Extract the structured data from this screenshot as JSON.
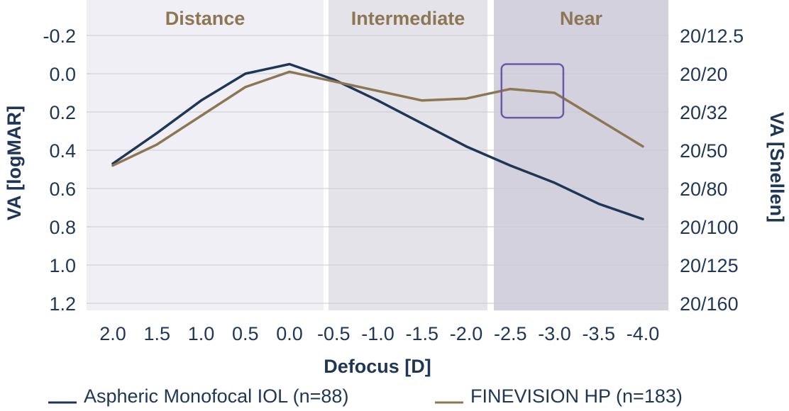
{
  "chart_data": {
    "type": "line",
    "title": "",
    "xlabel": "Defocus [D]",
    "ylabel": "VA [logMAR]",
    "y2label": "VA [Snellen]",
    "x": [
      2.0,
      1.5,
      1.0,
      0.5,
      0.0,
      -0.5,
      -1.0,
      -1.5,
      -2.0,
      -2.5,
      -3.0,
      -3.5,
      -4.0
    ],
    "x_tick_labels": [
      "2.0",
      "1.5",
      "1.0",
      "0.5",
      "0.0",
      "-0.5",
      "-1.0",
      "-1.5",
      "-2.0",
      "-2.5",
      "-3.0",
      "-3.5",
      "-4.0"
    ],
    "ylim": [
      1.2,
      -0.2
    ],
    "y_inverted": true,
    "y_ticks": [
      -0.2,
      0.0,
      0.2,
      0.4,
      0.6,
      0.8,
      1.0,
      1.2
    ],
    "y_tick_labels": [
      "-0.2",
      "0.0",
      "0.2",
      "0.4",
      "0.6",
      "0.8",
      "1.0",
      "1.2"
    ],
    "y2_tick_labels": [
      "20/12.5",
      "20/20",
      "20/32",
      "20/50",
      "20/80",
      "20/100",
      "20/125",
      "20/160"
    ],
    "grid": "horizontal",
    "legend_position": "bottom",
    "zones": [
      {
        "label": "Distance",
        "from": 2.5,
        "to": -0.35,
        "color": "#f0eff5"
      },
      {
        "label": "Intermediate",
        "from": -0.35,
        "to": -2.25,
        "color": "#e4e3ea"
      },
      {
        "label": "Near",
        "from": -2.25,
        "to": -4.3,
        "color": "#d4d1de"
      }
    ],
    "highlight": {
      "x_from": -2.4,
      "x_to": -3.1,
      "y_from": -0.05,
      "y_to": 0.23,
      "color": "#6b58a8"
    },
    "series": [
      {
        "name": "Aspheric Monofocal IOL (n=88)",
        "color": "#1f3757",
        "values": [
          0.47,
          0.31,
          0.14,
          0.0,
          -0.05,
          0.03,
          0.14,
          0.26,
          0.38,
          0.48,
          0.57,
          0.68,
          0.76
        ]
      },
      {
        "name": "FINEVISION HP (n=183)",
        "color": "#8c7752",
        "values": [
          0.48,
          0.37,
          0.22,
          0.07,
          -0.01,
          0.04,
          0.09,
          0.14,
          0.13,
          0.08,
          0.1,
          0.24,
          0.38
        ]
      }
    ]
  }
}
